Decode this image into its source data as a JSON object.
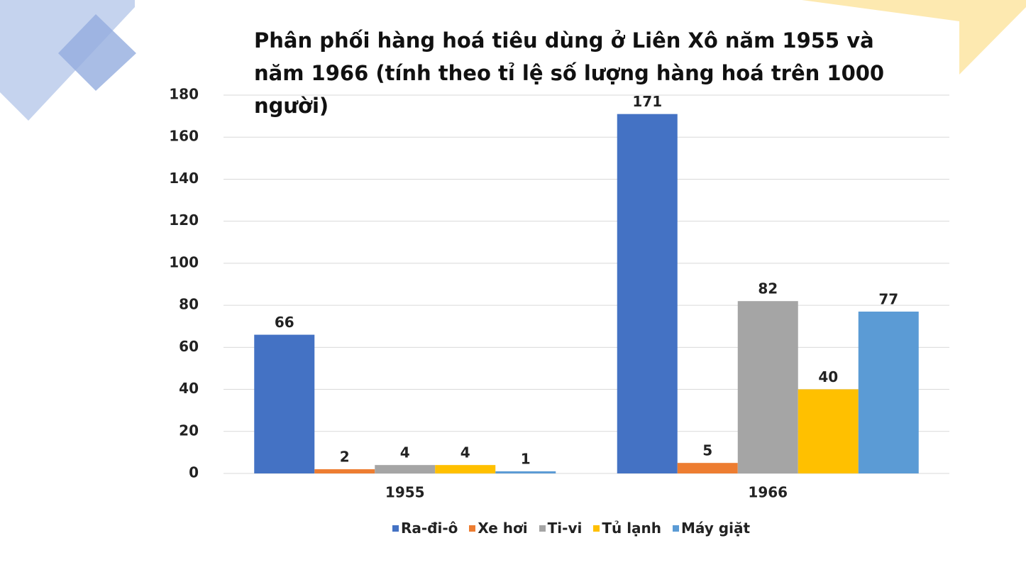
{
  "chart_data": {
    "type": "bar",
    "title": "Phân phối hàng hoá tiêu dùng ở Liên Xô năm 1955 và năm 1966  (tính theo tỉ lệ số lượng hàng hoá trên 1000 người)",
    "categories": [
      "1955",
      "1966"
    ],
    "series": [
      {
        "name": "Ra-đi-ô",
        "color": "#4472c4",
        "values": [
          66,
          171
        ]
      },
      {
        "name": "Xe hơi",
        "color": "#ed7d31",
        "values": [
          2,
          5
        ]
      },
      {
        "name": "Ti-vi",
        "color": "#a5a5a5",
        "values": [
          4,
          82
        ]
      },
      {
        "name": "Tủ lạnh",
        "color": "#ffc000",
        "values": [
          4,
          40
        ]
      },
      {
        "name": "Máy giặt",
        "color": "#5b9bd5",
        "values": [
          1,
          77
        ]
      }
    ],
    "ylim": [
      0,
      180
    ],
    "yticks": [
      0,
      20,
      40,
      60,
      80,
      100,
      120,
      140,
      160,
      180
    ],
    "grid": true,
    "legend": "bottom"
  }
}
